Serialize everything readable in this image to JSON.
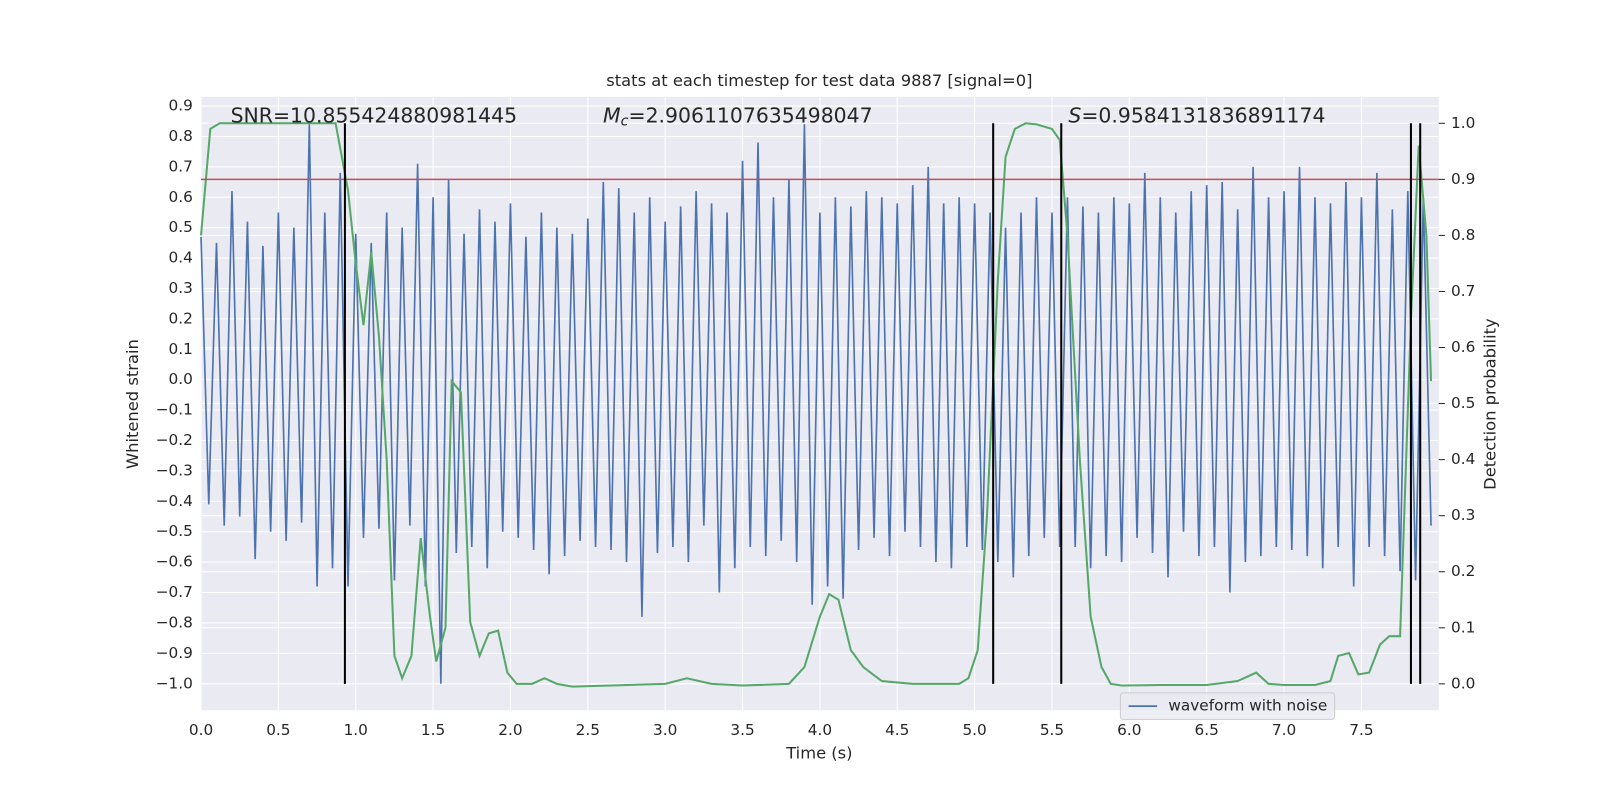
{
  "chart_data": {
    "type": "line",
    "title": "stats at each timestep for test data 9887 [signal=0]",
    "xlabel": "Time (s)",
    "ylabel": "Whitened strain",
    "y2label": "Detection probability",
    "background": "#eaeaf2",
    "grid": true,
    "legend": "lower right",
    "xlim": [
      0,
      8.0
    ],
    "ylim": [
      -1.087,
      0.93
    ],
    "y2lim": [
      -0.047,
      1.047
    ],
    "xticks": [
      {
        "value": 0,
        "label": "0.0"
      },
      0.5,
      {
        "value": 1,
        "label": "1.0"
      },
      1.5,
      {
        "value": 2,
        "label": "2.0"
      },
      2.5,
      {
        "value": 3,
        "label": "3.0"
      },
      3.5,
      {
        "value": 4,
        "label": "4.0"
      },
      4.5,
      {
        "value": 5,
        "label": "5.0"
      },
      5.5,
      {
        "value": 6,
        "label": "6.0"
      },
      6.5,
      {
        "value": 7,
        "label": "7.0"
      },
      7.5
    ],
    "yticks": [
      {
        "value": -1,
        "label": "−1.0"
      },
      {
        "value": -0.9,
        "label": "−0.9"
      },
      {
        "value": -0.8,
        "label": "−0.8"
      },
      {
        "value": -0.7,
        "label": "−0.7"
      },
      {
        "value": -0.6,
        "label": "−0.6"
      },
      {
        "value": -0.5,
        "label": "−0.5"
      },
      {
        "value": -0.4,
        "label": "−0.4"
      },
      {
        "value": -0.3,
        "label": "−0.3"
      },
      {
        "value": -0.2,
        "label": "−0.2"
      },
      {
        "value": -0.1,
        "label": "−0.1"
      },
      {
        "value": 0,
        "label": "0.0"
      },
      0.1,
      0.2,
      0.3,
      0.4,
      0.5,
      0.6,
      0.7,
      0.8,
      0.9
    ],
    "y2ticks": [
      {
        "value": 0,
        "label": "0.0"
      },
      0.1,
      0.2,
      0.3,
      0.4,
      0.5,
      0.6,
      0.7,
      0.8,
      0.9,
      {
        "value": 1,
        "label": "1.0"
      }
    ],
    "annotations": [
      {
        "text": "SNR=10.855424880981445"
      },
      {
        "symbol": "M",
        "subscript": "c",
        "text": "=2.9061107635498047"
      },
      {
        "symbol": "S",
        "text": "=0.9584131836891174"
      }
    ],
    "threshold": {
      "value": 0.9,
      "axis": "y2",
      "color": "#c44e52"
    },
    "vlines": {
      "x": [
        0.93,
        5.12,
        5.56,
        7.82,
        7.88
      ],
      "ymin": 0,
      "ymax": 1,
      "axis": "y2",
      "color": "#000000"
    },
    "series": [
      {
        "name": "waveform with noise",
        "color": "#4c72b0",
        "x": [
          0,
          0.05,
          0.1,
          0.15,
          0.2,
          0.25,
          0.3,
          0.35,
          0.4,
          0.45,
          0.5,
          0.55,
          0.6,
          0.65,
          0.7,
          0.75,
          0.8,
          0.85,
          0.9,
          0.95,
          1,
          1.05,
          1.1,
          1.15,
          1.2,
          1.25,
          1.3,
          1.35,
          1.4,
          1.45,
          1.5,
          1.55,
          1.6,
          1.65,
          1.7,
          1.75,
          1.8,
          1.85,
          1.9,
          1.95,
          2,
          2.05,
          2.1,
          2.15,
          2.2,
          2.25,
          2.3,
          2.35,
          2.4,
          2.45,
          2.5,
          2.55,
          2.6,
          2.65,
          2.7,
          2.75,
          2.8,
          2.85,
          2.9,
          2.95,
          3,
          3.05,
          3.1,
          3.15,
          3.2,
          3.25,
          3.3,
          3.35,
          3.4,
          3.45,
          3.5,
          3.55,
          3.6,
          3.65,
          3.7,
          3.75,
          3.8,
          3.85,
          3.9,
          3.95,
          4,
          4.05,
          4.1,
          4.15,
          4.2,
          4.25,
          4.3,
          4.35,
          4.4,
          4.45,
          4.5,
          4.55,
          4.6,
          4.65,
          4.7,
          4.75,
          4.8,
          4.85,
          4.9,
          4.95,
          5,
          5.05,
          5.1,
          5.15,
          5.2,
          5.25,
          5.3,
          5.35,
          5.4,
          5.45,
          5.5,
          5.55,
          5.6,
          5.65,
          5.7,
          5.75,
          5.8,
          5.85,
          5.9,
          5.95,
          6,
          6.05,
          6.1,
          6.15,
          6.2,
          6.25,
          6.3,
          6.35,
          6.4,
          6.45,
          6.5,
          6.55,
          6.6,
          6.65,
          6.7,
          6.75,
          6.8,
          6.85,
          6.9,
          6.95,
          7,
          7.05,
          7.1,
          7.15,
          7.2,
          7.25,
          7.3,
          7.35,
          7.4,
          7.45,
          7.5,
          7.55,
          7.6,
          7.65,
          7.7,
          7.75,
          7.8,
          7.85,
          7.9,
          7.95
        ],
        "values": [
          0.47,
          -0.41,
          0.45,
          -0.48,
          0.62,
          -0.45,
          0.52,
          -0.59,
          0.44,
          -0.5,
          0.55,
          -0.53,
          0.5,
          -0.47,
          0.84,
          -0.68,
          0.55,
          -0.62,
          0.68,
          -0.68,
          0.48,
          -0.52,
          0.45,
          -0.49,
          0.55,
          -0.66,
          0.5,
          -0.48,
          0.71,
          -0.68,
          0.6,
          -1.0,
          0.66,
          -0.57,
          0.48,
          -0.55,
          0.56,
          -0.62,
          0.52,
          -0.5,
          0.58,
          -0.52,
          0.47,
          -0.56,
          0.55,
          -0.64,
          0.5,
          -0.58,
          0.48,
          -0.53,
          0.53,
          -0.55,
          0.65,
          -0.56,
          0.63,
          -0.6,
          0.55,
          -0.78,
          0.6,
          -0.57,
          0.52,
          -0.55,
          0.57,
          -0.6,
          0.62,
          -0.48,
          0.58,
          -0.7,
          0.55,
          -0.62,
          0.72,
          -0.55,
          0.78,
          -0.58,
          0.6,
          -0.53,
          0.66,
          -0.6,
          0.84,
          -0.74,
          0.55,
          -0.68,
          0.6,
          -0.72,
          0.57,
          -0.56,
          0.62,
          -0.52,
          0.6,
          -0.58,
          0.58,
          -0.5,
          0.64,
          -0.55,
          0.7,
          -0.6,
          0.58,
          -0.62,
          0.6,
          -0.55,
          0.58,
          -0.56,
          0.55,
          -0.6,
          0.5,
          -0.65,
          0.55,
          -0.58,
          0.6,
          -0.52,
          0.55,
          -0.55,
          0.6,
          -0.55,
          0.57,
          -0.62,
          0.55,
          -0.58,
          0.6,
          -0.6,
          0.58,
          -0.52,
          0.68,
          -0.57,
          0.6,
          -0.65,
          0.55,
          -0.5,
          0.62,
          -0.58,
          0.64,
          -0.55,
          0.65,
          -0.7,
          0.56,
          -0.6,
          0.7,
          -0.58,
          0.6,
          -0.55,
          0.62,
          -0.56,
          0.7,
          -0.58,
          0.6,
          -0.62,
          0.58,
          -0.55,
          0.65,
          -0.68,
          0.6,
          -0.55,
          0.68,
          -0.58,
          0.56,
          -0.63,
          0.62,
          -0.66,
          0.6,
          -0.48
        ]
      },
      {
        "color": "#55a868",
        "axis": "y2",
        "x": [
          0,
          0.06,
          0.12,
          0.3,
          0.5,
          0.7,
          0.87,
          0.95,
          1.0,
          1.05,
          1.1,
          1.15,
          1.2,
          1.25,
          1.3,
          1.36,
          1.42,
          1.48,
          1.52,
          1.58,
          1.62,
          1.68,
          1.74,
          1.8,
          1.86,
          1.92,
          1.98,
          2.04,
          2.14,
          2.22,
          2.3,
          2.4,
          3.0,
          3.14,
          3.3,
          3.5,
          3.8,
          3.9,
          4.0,
          4.06,
          4.12,
          4.2,
          4.28,
          4.4,
          4.6,
          4.9,
          4.96,
          5.02,
          5.08,
          5.15,
          5.2,
          5.26,
          5.33,
          5.4,
          5.5,
          5.55,
          5.6,
          5.68,
          5.75,
          5.82,
          5.88,
          5.95,
          6.2,
          6.5,
          6.7,
          6.82,
          6.9,
          7.0,
          7.2,
          7.3,
          7.35,
          7.42,
          7.48,
          7.55,
          7.62,
          7.68,
          7.75,
          7.82,
          7.87,
          7.92,
          7.95
        ],
        "values": [
          0.8,
          0.99,
          1.0,
          1.0,
          1.0,
          1.0,
          1.0,
          0.88,
          0.75,
          0.64,
          0.77,
          0.62,
          0.4,
          0.05,
          0.01,
          0.05,
          0.26,
          0.12,
          0.04,
          0.1,
          0.54,
          0.52,
          0.11,
          0.05,
          0.09,
          0.095,
          0.02,
          0.0,
          0.0,
          0.01,
          0.0,
          -0.005,
          0.0,
          0.01,
          0.0,
          -0.003,
          0.0,
          0.03,
          0.12,
          0.16,
          0.15,
          0.06,
          0.03,
          0.005,
          0.0,
          0.0,
          0.01,
          0.06,
          0.3,
          0.72,
          0.94,
          0.99,
          1.0,
          0.998,
          0.99,
          0.97,
          0.8,
          0.4,
          0.12,
          0.03,
          0.0,
          -0.003,
          -0.002,
          -0.002,
          0.005,
          0.02,
          0.0,
          -0.002,
          -0.002,
          0.005,
          0.05,
          0.055,
          0.017,
          0.02,
          0.07,
          0.085,
          0.085,
          0.65,
          0.96,
          0.8,
          0.54
        ]
      }
    ]
  }
}
